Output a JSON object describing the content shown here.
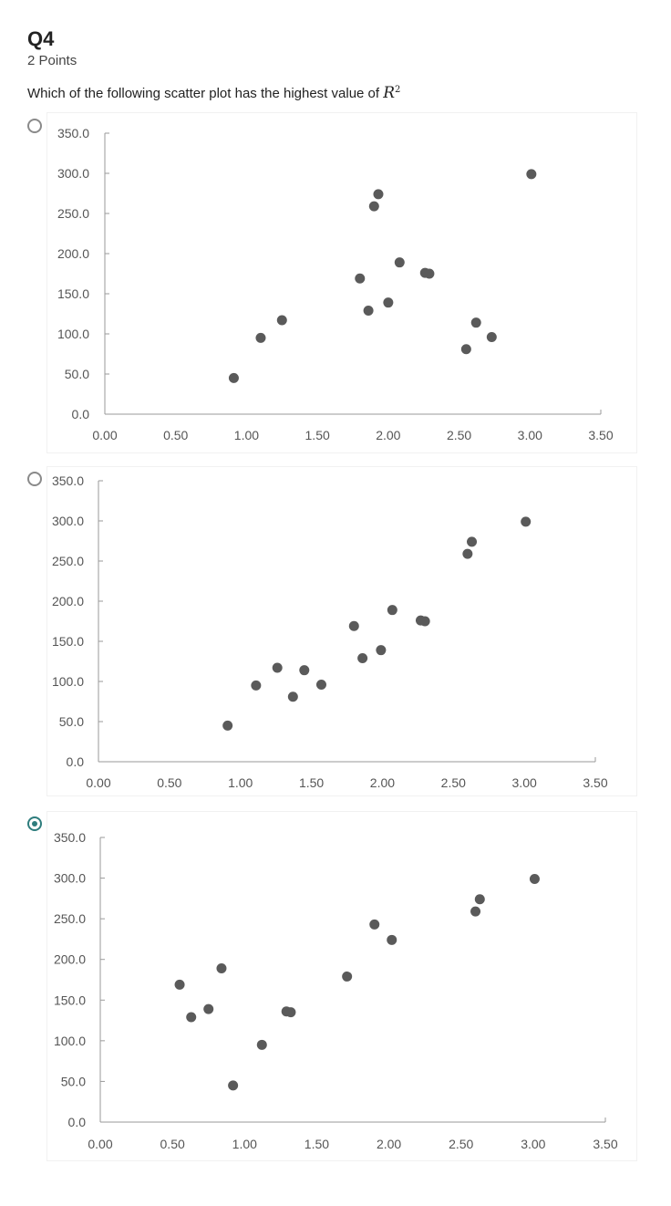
{
  "question": {
    "title": "Q4",
    "points": "2 Points",
    "text_prefix": "Which of the following scatter plot has the highest value of ",
    "r_symbol": "R",
    "r_superscript": "2"
  },
  "options": [
    {
      "id": "a",
      "selected": false
    },
    {
      "id": "b",
      "selected": false
    },
    {
      "id": "c",
      "selected": true
    }
  ],
  "colors": {
    "accent": "#2e7d7d",
    "marker": "#5a5a5a",
    "axis": "#9a9a9a",
    "tick_text": "#555555"
  },
  "chart_data": [
    {
      "type": "scatter",
      "xlim": [
        0,
        3.5
      ],
      "ylim": [
        0,
        350
      ],
      "xticks": [
        "0.00",
        "0.50",
        "1.00",
        "1.50",
        "2.00",
        "2.50",
        "3.00",
        "3.50"
      ],
      "yticks": [
        "0.0",
        "50.0",
        "100.0",
        "150.0",
        "200.0",
        "250.0",
        "300.0",
        "350.0"
      ],
      "grid": false,
      "points": [
        [
          0.91,
          45
        ],
        [
          1.1,
          95
        ],
        [
          1.25,
          117
        ],
        [
          1.8,
          169
        ],
        [
          1.86,
          129
        ],
        [
          1.9,
          259
        ],
        [
          1.93,
          274
        ],
        [
          2.0,
          139
        ],
        [
          2.08,
          189
        ],
        [
          2.26,
          176
        ],
        [
          2.29,
          175
        ],
        [
          2.55,
          81
        ],
        [
          2.62,
          114
        ],
        [
          2.73,
          96
        ],
        [
          3.01,
          299
        ]
      ]
    },
    {
      "type": "scatter",
      "xlim": [
        0,
        3.5
      ],
      "ylim": [
        0,
        350
      ],
      "xticks": [
        "0.00",
        "0.50",
        "1.00",
        "1.50",
        "2.00",
        "2.50",
        "3.00",
        "3.50"
      ],
      "yticks": [
        "0.0",
        "50.0",
        "100.0",
        "150.0",
        "200.0",
        "250.0",
        "300.0",
        "350.0"
      ],
      "grid": false,
      "points": [
        [
          0.91,
          45
        ],
        [
          1.11,
          95
        ],
        [
          1.26,
          117
        ],
        [
          1.37,
          81
        ],
        [
          1.45,
          114
        ],
        [
          1.57,
          96
        ],
        [
          1.8,
          169
        ],
        [
          1.86,
          129
        ],
        [
          1.99,
          139
        ],
        [
          2.07,
          189
        ],
        [
          2.27,
          176
        ],
        [
          2.3,
          175
        ],
        [
          2.6,
          259
        ],
        [
          2.63,
          274
        ],
        [
          3.01,
          299
        ]
      ]
    },
    {
      "type": "scatter",
      "xlim": [
        0,
        3.5
      ],
      "ylim": [
        0,
        350
      ],
      "xticks": [
        "0.00",
        "0.50",
        "1.00",
        "1.50",
        "2.00",
        "2.50",
        "3.00",
        "3.50"
      ],
      "yticks": [
        "0.0",
        "50.0",
        "100.0",
        "150.0",
        "200.0",
        "250.0",
        "300.0",
        "350.0"
      ],
      "grid": false,
      "points": [
        [
          0.55,
          169
        ],
        [
          0.63,
          129
        ],
        [
          0.75,
          139
        ],
        [
          0.84,
          189
        ],
        [
          0.92,
          45
        ],
        [
          1.12,
          95
        ],
        [
          1.29,
          136
        ],
        [
          1.32,
          135
        ],
        [
          1.71,
          179
        ],
        [
          1.9,
          243
        ],
        [
          2.02,
          224
        ],
        [
          2.6,
          259
        ],
        [
          2.63,
          274
        ],
        [
          3.01,
          299
        ]
      ]
    }
  ]
}
